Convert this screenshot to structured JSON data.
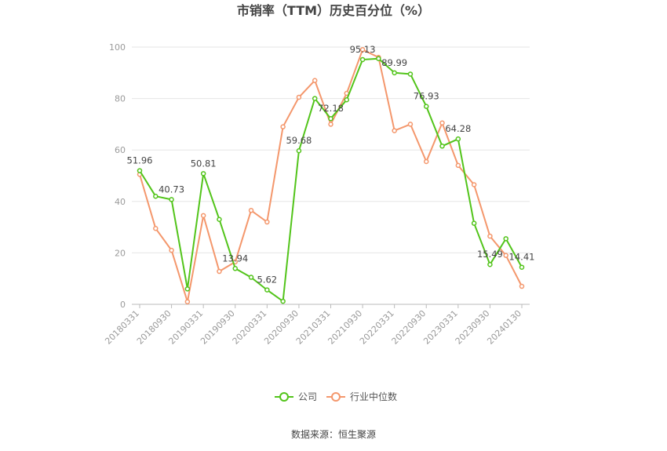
{
  "chart_data": {
    "type": "line",
    "title": "市销率（TTM）历史百分位（%）",
    "source": "数据来源：恒生聚源",
    "ylim": [
      0,
      100
    ],
    "yticks": [
      0,
      20,
      40,
      60,
      80,
      100
    ],
    "x_tick_labels": [
      "20180331",
      "20180930",
      "20190331",
      "20190930",
      "20200331",
      "20200930",
      "20210331",
      "20210930",
      "20220331",
      "20220930",
      "20230331",
      "20230930",
      "20240130"
    ],
    "legend_position": "bottom-center",
    "series": [
      {
        "name": "公司",
        "color": "#52c41a",
        "values": [
          51.96,
          42.0,
          40.73,
          6.0,
          50.81,
          33.0,
          13.94,
          10.5,
          5.62,
          1.2,
          59.68,
          80.0,
          72.18,
          79.5,
          95.13,
          95.5,
          89.99,
          89.5,
          76.93,
          61.5,
          64.28,
          31.5,
          15.49,
          25.5,
          14.41
        ],
        "labels": {
          "0": "51.96",
          "2": "40.73",
          "4": "50.81",
          "6": "13.94",
          "8": "5.62",
          "10": "59.68",
          "12": "72.18",
          "14": "95.13",
          "16": "89.99",
          "18": "76.93",
          "20": "64.28",
          "22": "15.49",
          "24": "14.41"
        }
      },
      {
        "name": "行业中位数",
        "color": "#f4976c",
        "values": [
          50.5,
          29.5,
          21.0,
          1.0,
          34.5,
          12.8,
          16.5,
          36.5,
          32.0,
          69.0,
          80.5,
          87.0,
          70.0,
          82.0,
          99.0,
          96.0,
          67.5,
          70.0,
          55.5,
          70.5,
          54.0,
          46.5,
          26.5,
          19.0,
          7.0
        ]
      }
    ]
  }
}
